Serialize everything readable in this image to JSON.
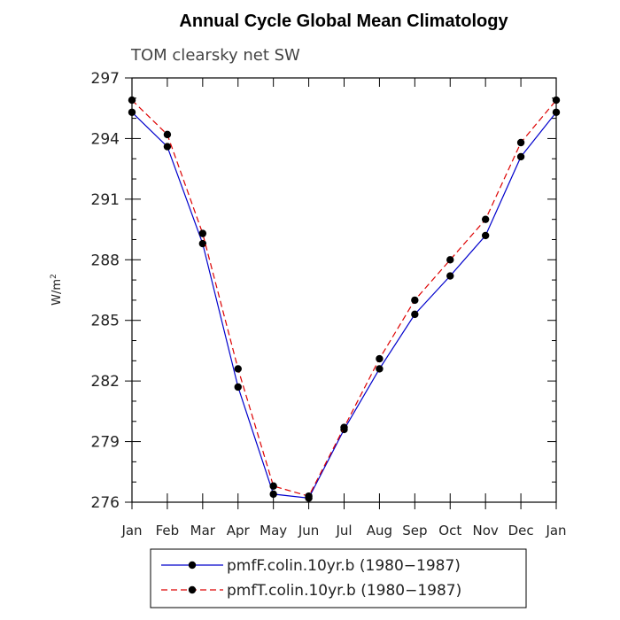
{
  "chart_data": {
    "type": "line",
    "title": "Annual Cycle Global Mean Climatology",
    "subtitle": "TOM clearsky net SW",
    "ylabel": "W/m",
    "ylabel_superscript": "2",
    "xlabel": "",
    "categories": [
      "Jan",
      "Feb",
      "Mar",
      "Apr",
      "May",
      "Jun",
      "Jul",
      "Aug",
      "Sep",
      "Oct",
      "Nov",
      "Dec",
      "Jan"
    ],
    "ylim": [
      276,
      297
    ],
    "yticks": [
      276,
      279,
      282,
      285,
      288,
      291,
      294,
      297
    ],
    "grid": false,
    "legend_position": "bottom",
    "series": [
      {
        "name": "pmfF.colin.10yr.b (1980−1987)",
        "color": "#0000cc",
        "line_style": "solid",
        "marker": "dot",
        "values": [
          295.3,
          293.6,
          288.8,
          281.7,
          276.4,
          276.2,
          279.6,
          282.6,
          285.3,
          287.2,
          289.2,
          293.1,
          295.3
        ]
      },
      {
        "name": "pmfT.colin.10yr.b (1980−1987)",
        "color": "#dd0000",
        "line_style": "dashed",
        "marker": "dot",
        "values": [
          295.9,
          294.2,
          289.3,
          282.6,
          276.8,
          276.3,
          279.7,
          283.1,
          286.0,
          288.0,
          290.0,
          293.8,
          295.9
        ]
      }
    ]
  }
}
